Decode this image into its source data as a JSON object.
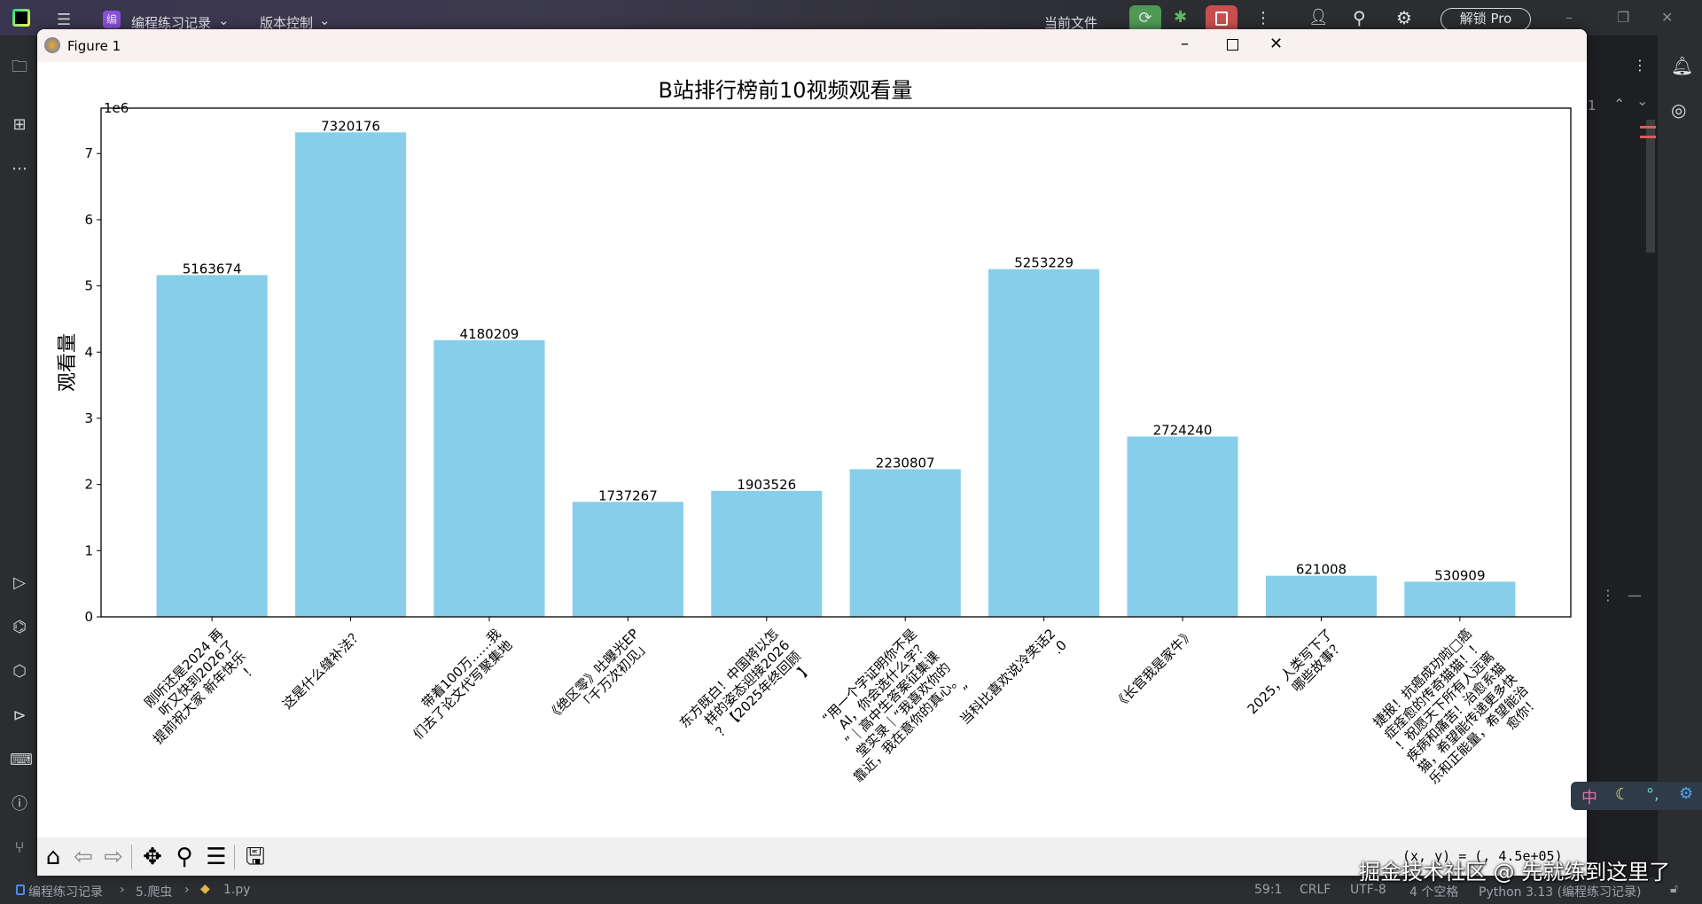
{
  "ide": {
    "project": "编程练习记录",
    "project_badge": "编",
    "vcs": "版本控制",
    "run_config": "当前文件",
    "unlock": "解锁 Pro",
    "breadcrumb": [
      "编程练习记录",
      "5.爬虫",
      "1.py"
    ],
    "status": {
      "position": "59:1",
      "line_sep": "CRLF",
      "encoding": "UTF-8",
      "indent": "4 个空格",
      "interpreter": "Python 3.13 (编程练习记录)"
    },
    "problems_count": "1",
    "watermark": "掘金技术社区 @ 先就练到这里了",
    "ime": {
      "lang": "中"
    },
    "colors": {
      "run": "#4e9a55",
      "stop": "#c94f4f",
      "project_badge": "#8a4fd8"
    }
  },
  "figure": {
    "title": "Figure 1",
    "coords": "(x, y) = (, 4.5e+05)"
  },
  "chart_data": {
    "type": "bar",
    "title": "B站排行榜前10视频观看量",
    "xlabel": "",
    "ylabel": "观看量",
    "y_offset_text": "1e6",
    "ylim": [
      0,
      7686185
    ],
    "yticks": [
      0,
      1,
      2,
      3,
      4,
      5,
      6,
      7
    ],
    "grid": false,
    "bar_color": "#87ceeb",
    "categories": [
      "刚听还是2024 再\n听又快到2026了\n提前祝大家 新年快乐\n！",
      "这是什么缝补法？",
      "带着100万……我\n们去了论文代写聚集地",
      "《绝区零》吐曝光EP\n「千万次初见」",
      "东方既白！中国将以怎\n样的姿态迎接2026\n？【2025年终回顾\n】",
      "“用一个字证明你不是\nAI，你会选什么字？\n”｜高中生答案征集课\n堂实录｜“我喜欢你的\n靠近，我在意你的真心。\n”",
      "当科比喜欢说冷笑话2\n.0",
      "《长官我是家牛》",
      "2025，人类写下了\n哪些故事？",
      "捷报！抗癌成功啦□癌\n症痊愈的传奇猫猫！！\n！祝愿天下所有人远离\n疾病和痛苦！治愈系猫\n猫，希望能传递更多快\n乐和正能量，希望能治\n愈你！"
    ],
    "values": [
      5163674,
      7320176,
      4180209,
      1737267,
      1903526,
      2230807,
      5253229,
      2724240,
      621008,
      530909
    ]
  }
}
